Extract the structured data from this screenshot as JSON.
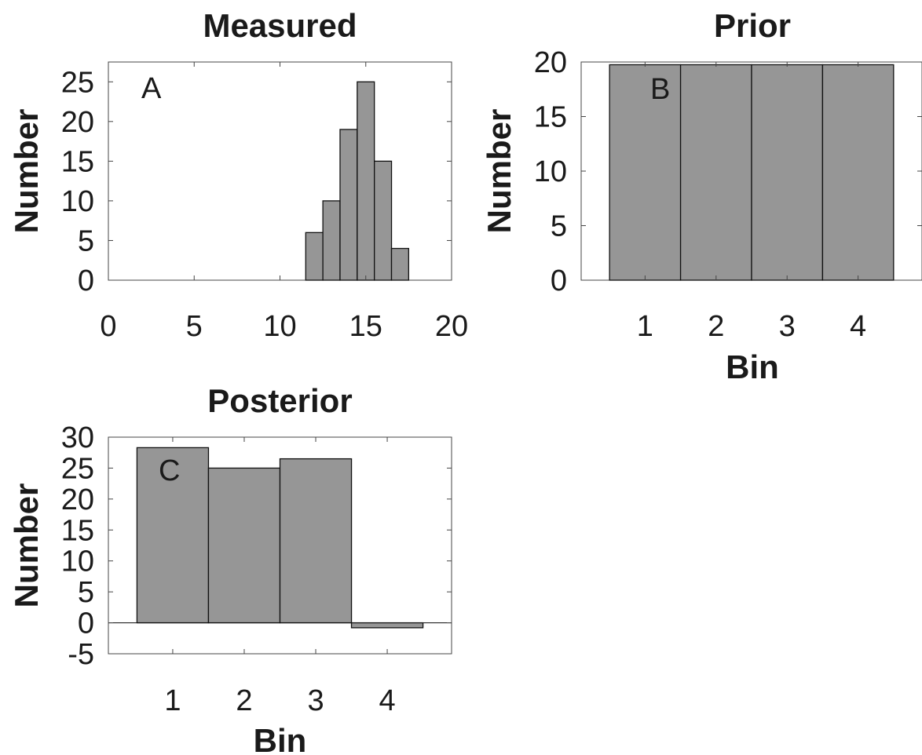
{
  "chart_data": [
    {
      "type": "bar",
      "title": "Measured",
      "xlabel": "",
      "ylabel": "Number",
      "panel_label": "A",
      "bin_width": 1,
      "x": [
        12,
        13,
        14,
        15,
        16,
        17
      ],
      "values": [
        6,
        10,
        19,
        25,
        15,
        4
      ],
      "xlim": [
        0,
        20
      ],
      "ylim": [
        0,
        27.5
      ],
      "xticks": [
        0,
        5,
        10,
        15,
        20
      ],
      "yticks": [
        0,
        5,
        10,
        15,
        20,
        25
      ],
      "bar_color": "#969696",
      "grid": false,
      "legend": "none"
    },
    {
      "type": "bar",
      "title": "Prior",
      "xlabel": "Bin",
      "ylabel": "Number",
      "panel_label": "B",
      "categories": [
        "1",
        "2",
        "3",
        "4"
      ],
      "values": [
        19.75,
        19.75,
        19.75,
        19.75
      ],
      "ylim": [
        0,
        20
      ],
      "yticks": [
        0,
        5,
        10,
        15,
        20
      ],
      "bar_color": "#969696",
      "grid": false,
      "legend": "none"
    },
    {
      "type": "bar",
      "title": "Posterior",
      "xlabel": "Bin",
      "ylabel": "Number",
      "panel_label": "C",
      "categories": [
        "1",
        "2",
        "3",
        "4"
      ],
      "values": [
        28.3,
        25,
        26.5,
        -0.8
      ],
      "ylim": [
        -5,
        30
      ],
      "yticks": [
        -5,
        0,
        5,
        10,
        15,
        20,
        25,
        30
      ],
      "bar_color": "#969696",
      "grid": false,
      "legend": "none"
    }
  ]
}
